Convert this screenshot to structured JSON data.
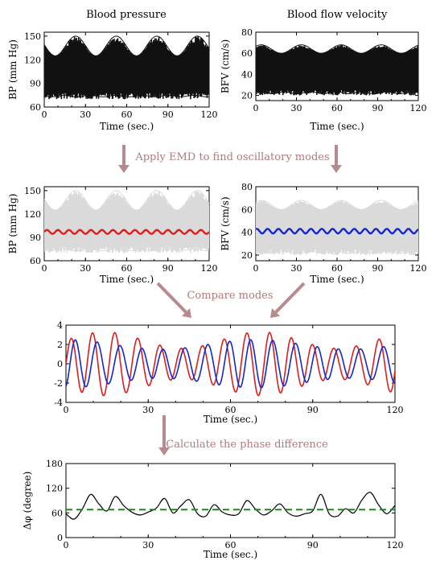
{
  "steps": {
    "step1": "Apply EMD to find oscillatory modes",
    "step2": "Compare modes",
    "step3": "Calculate the phase difference"
  },
  "colors": {
    "bp": "#e11c1c",
    "bfv": "#1327cf",
    "envelope_gray": "#dadada",
    "raw_black": "#111111",
    "mean_green": "#1b8a1b",
    "arrow": "#b78a8d"
  },
  "chart_data": [
    {
      "id": "bp_raw",
      "type": "area",
      "title": "Blood pressure",
      "xlabel": "Time (sec.)",
      "ylabel": "BP (mm Hg)",
      "xlim": [
        0,
        120
      ],
      "ylim": [
        60,
        155
      ],
      "xticks": [
        "0",
        "30",
        "60",
        "90",
        "120"
      ],
      "yticks": [
        "60",
        "90",
        "120",
        "150"
      ],
      "series": [
        {
          "lower_range": [
            70,
            78
          ],
          "upper_range": [
            125,
            150
          ],
          "period_sec": 1
        }
      ]
    },
    {
      "id": "bfv_raw",
      "type": "area",
      "title": "Blood flow velocity",
      "xlabel": "Time (sec.)",
      "ylabel": "BFV (cm/s)",
      "xlim": [
        0,
        120
      ],
      "ylim": [
        15,
        80
      ],
      "xticks": [
        "0",
        "30",
        "60",
        "90",
        "120"
      ],
      "yticks": [
        "20",
        "40",
        "60",
        "80"
      ],
      "series": [
        {
          "lower_range": [
            20,
            25
          ],
          "upper_range": [
            60,
            68
          ],
          "period_sec": 1
        }
      ]
    },
    {
      "id": "bp_mode",
      "type": "line",
      "xlabel": "Time (sec.)",
      "ylabel": "BP (mm Hg)",
      "xlim": [
        0,
        120
      ],
      "ylim": [
        60,
        155
      ],
      "xticks": [
        "0",
        "30",
        "60",
        "90",
        "120"
      ],
      "yticks": [
        "60",
        "90",
        "120",
        "150"
      ],
      "series": [
        {
          "mean": 97,
          "amplitude": 2.5,
          "period_sec": 8
        }
      ]
    },
    {
      "id": "bfv_mode",
      "type": "line",
      "xlabel": "Time (sec.)",
      "ylabel": "BFV (cm/s)",
      "xlim": [
        0,
        120
      ],
      "ylim": [
        15,
        80
      ],
      "xticks": [
        "0",
        "30",
        "60",
        "90",
        "120"
      ],
      "yticks": [
        "20",
        "40",
        "60",
        "80"
      ],
      "series": [
        {
          "mean": 41,
          "amplitude": 2,
          "period_sec": 8
        }
      ]
    },
    {
      "id": "modes_compare",
      "type": "line",
      "xlabel": "Time (sec.)",
      "xlim": [
        0,
        120
      ],
      "ylim": [
        -4,
        4
      ],
      "xticks": [
        "0",
        "30",
        "60",
        "90",
        "120"
      ],
      "yticks": [
        "-4",
        "-2",
        "0",
        "2",
        "4"
      ],
      "series": [
        {
          "color": "red",
          "amplitude_range": [
            1.6,
            3.3
          ],
          "period_sec": 8,
          "phase_lead_deg": 0
        },
        {
          "color": "blue",
          "amplitude_range": [
            1.5,
            2.5
          ],
          "period_sec": 8,
          "phase_lag_deg": 70
        }
      ]
    },
    {
      "id": "phase_diff",
      "type": "line",
      "xlabel": "Time (sec.)",
      "ylabel": "Δφ (degree)",
      "xlim": [
        0,
        120
      ],
      "ylim": [
        0,
        180
      ],
      "xticks": [
        "0",
        "30",
        "60",
        "90",
        "120"
      ],
      "yticks": [
        "0",
        "60",
        "120",
        "180"
      ],
      "series": [
        {
          "x": [
            0,
            3,
            6,
            9,
            12,
            15,
            18,
            21,
            24,
            27,
            30,
            33,
            36,
            39,
            42,
            45,
            48,
            51,
            54,
            57,
            60,
            63,
            66,
            69,
            72,
            75,
            78,
            81,
            84,
            87,
            90,
            93,
            96,
            99,
            102,
            105,
            108,
            111,
            114,
            117,
            120
          ],
          "y": [
            58,
            45,
            70,
            105,
            82,
            65,
            100,
            78,
            62,
            55,
            62,
            72,
            95,
            60,
            78,
            92,
            58,
            52,
            80,
            62,
            55,
            58,
            90,
            70,
            55,
            65,
            82,
            60,
            52,
            58,
            65,
            105,
            58,
            52,
            70,
            60,
            92,
            110,
            80,
            58,
            78
          ]
        },
        {
          "name": "mean",
          "y_const": 68,
          "style": "dashed"
        }
      ]
    }
  ]
}
